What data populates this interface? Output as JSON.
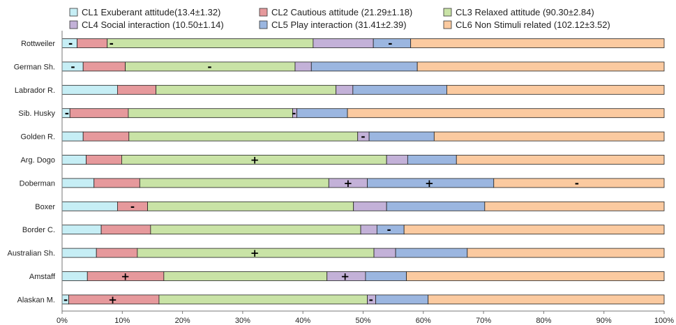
{
  "chart_data": {
    "type": "bar",
    "orientation": "horizontal",
    "stacked": "percent",
    "title": "",
    "xlabel": "",
    "ylabel": "",
    "xlim": [
      0,
      100
    ],
    "x_ticks": [
      "0%",
      "10%",
      "20%",
      "30%",
      "40%",
      "50%",
      "60%",
      "70%",
      "80%",
      "90%",
      "100%"
    ],
    "grid": false,
    "legend_position": "top",
    "categories": [
      "Rottweiler",
      "German Sh.",
      "Labrador R.",
      "Sib. Husky",
      "Golden R.",
      "Arg. Dogo",
      "Doberman",
      "Boxer",
      "Border C.",
      "Australian Sh.",
      "Amstaff",
      "Alaskan M."
    ],
    "series": [
      {
        "name": "CL1 Exuberant attitude(13.4±1.32)",
        "color": "#c6eef5",
        "values": [
          2.5,
          3.5,
          9.2,
          1.3,
          3.5,
          4.0,
          5.3,
          9.2,
          6.5,
          5.7,
          4.2,
          1.1
        ]
      },
      {
        "name": "CL2 Cautious attitude (21.29±1.18)",
        "color": "#e6999c",
        "values": [
          5.0,
          7.0,
          6.4,
          9.7,
          7.6,
          5.9,
          7.6,
          5.0,
          8.2,
          6.8,
          12.7,
          15.0
        ]
      },
      {
        "name": "CL3 Relaxed attitude  (90.30±2.84)",
        "color": "#c9e3a6",
        "values": [
          34.2,
          28.2,
          29.9,
          27.3,
          38.0,
          44.0,
          31.4,
          34.2,
          34.9,
          39.3,
          27.1,
          34.6
        ]
      },
      {
        "name": "CL4 Social interaction  (10.50±1.14)",
        "color": "#c3b1d8",
        "values": [
          10.0,
          2.7,
          2.8,
          0.7,
          1.9,
          3.5,
          6.4,
          5.5,
          2.7,
          3.6,
          6.4,
          1.4
        ]
      },
      {
        "name": "CL5 Play interaction (31.41±2.39)",
        "color": "#9bb6e0",
        "values": [
          6.2,
          17.6,
          15.6,
          8.4,
          10.8,
          8.1,
          21.0,
          16.3,
          4.5,
          11.9,
          6.8,
          8.7
        ]
      },
      {
        "name": "CL6 Non Stimuli related  (102.12±3.52)",
        "color": "#fbcaa0",
        "values": [
          42.1,
          41.0,
          36.1,
          52.6,
          38.2,
          34.5,
          28.3,
          29.8,
          43.2,
          32.7,
          42.8,
          39.2
        ]
      }
    ],
    "annotations": [
      {
        "category": "Rottweiler",
        "x": 1.4,
        "text": "-"
      },
      {
        "category": "Rottweiler",
        "x": 8.2,
        "text": "-"
      },
      {
        "category": "Rottweiler",
        "x": 54.5,
        "text": "-"
      },
      {
        "category": "German Sh.",
        "x": 1.8,
        "text": "-"
      },
      {
        "category": "German Sh.",
        "x": 24.5,
        "text": "-"
      },
      {
        "category": "Sib. Husky",
        "x": 0.8,
        "text": "-"
      },
      {
        "category": "Sib. Husky",
        "x": 38.5,
        "text": "-"
      },
      {
        "category": "Golden R.",
        "x": 50.0,
        "text": "-"
      },
      {
        "category": "Arg. Dogo",
        "x": 32.0,
        "text": "+"
      },
      {
        "category": "Doberman",
        "x": 47.5,
        "text": "+"
      },
      {
        "category": "Doberman",
        "x": 61.0,
        "text": "+"
      },
      {
        "category": "Doberman",
        "x": 85.5,
        "text": "-"
      },
      {
        "category": "Boxer",
        "x": 11.7,
        "text": "-"
      },
      {
        "category": "Border C.",
        "x": 54.3,
        "text": "-"
      },
      {
        "category": "Australian Sh.",
        "x": 32.0,
        "text": "+"
      },
      {
        "category": "Amstaff",
        "x": 10.5,
        "text": "+"
      },
      {
        "category": "Amstaff",
        "x": 47.0,
        "text": "+"
      },
      {
        "category": "Alaskan M.",
        "x": 0.6,
        "text": "-"
      },
      {
        "category": "Alaskan M.",
        "x": 8.4,
        "text": "+"
      },
      {
        "category": "Alaskan M.",
        "x": 51.3,
        "text": "-"
      }
    ]
  }
}
